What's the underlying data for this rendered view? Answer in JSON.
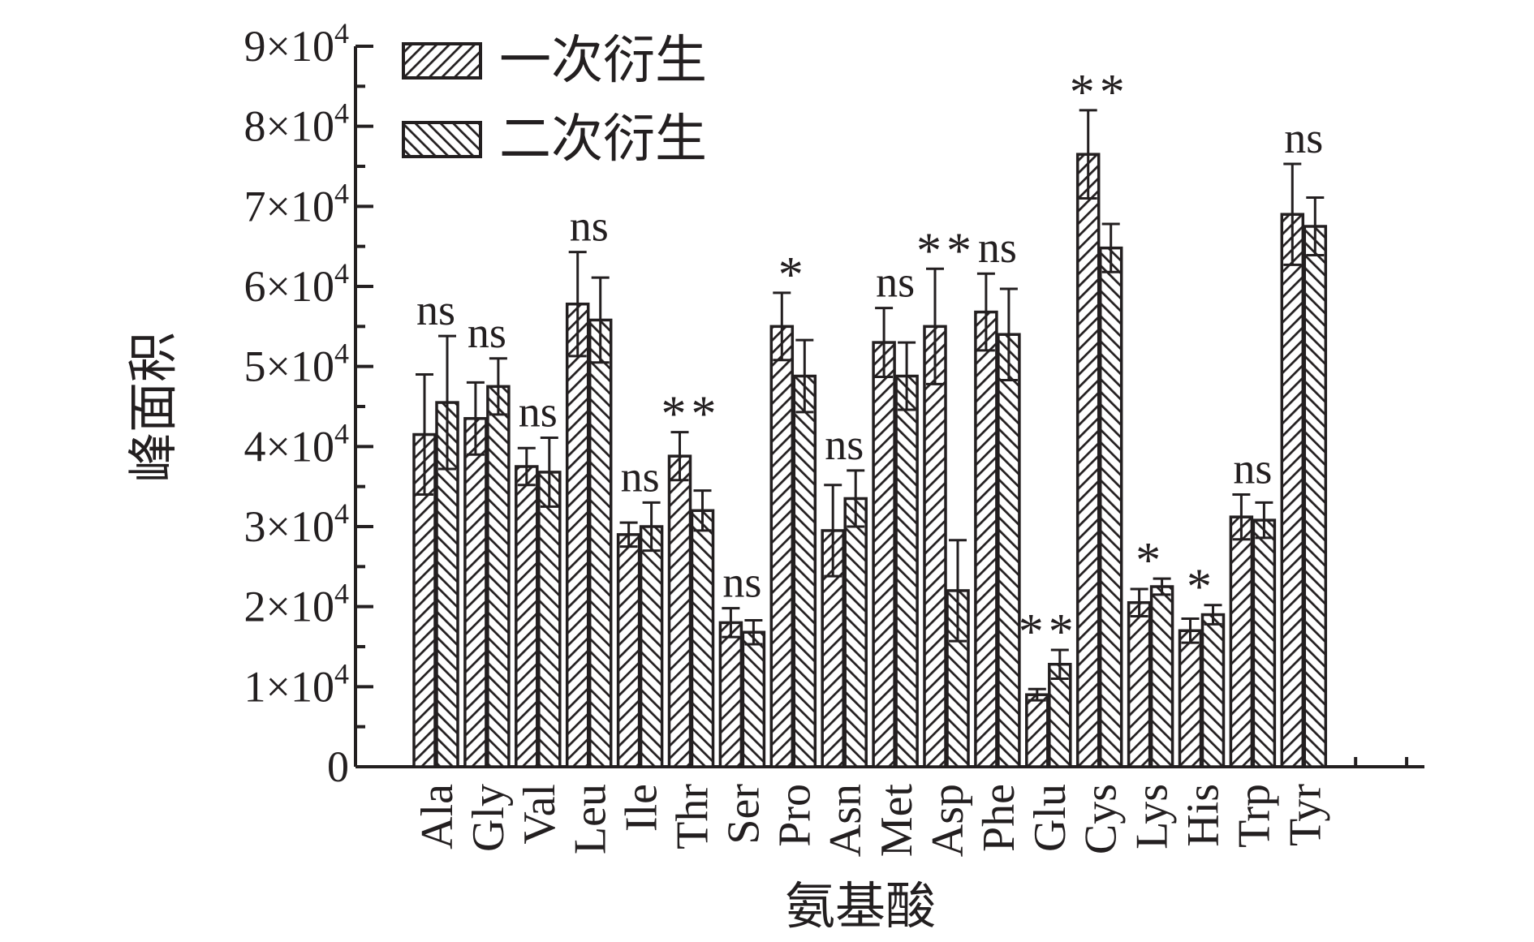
{
  "chart_data": {
    "type": "bar",
    "xlabel": "氨基酸",
    "ylabel": "峰面积",
    "ylim": [
      0,
      90000
    ],
    "yticks": [
      {
        "value": 0,
        "mantissa": "0",
        "exponent": ""
      },
      {
        "value": 10000,
        "mantissa": "1×10",
        "exponent": "4"
      },
      {
        "value": 20000,
        "mantissa": "2×10",
        "exponent": "4"
      },
      {
        "value": 30000,
        "mantissa": "3×10",
        "exponent": "4"
      },
      {
        "value": 40000,
        "mantissa": "4×10",
        "exponent": "4"
      },
      {
        "value": 50000,
        "mantissa": "5×10",
        "exponent": "4"
      },
      {
        "value": 60000,
        "mantissa": "6×10",
        "exponent": "4"
      },
      {
        "value": 70000,
        "mantissa": "7×10",
        "exponent": "4"
      },
      {
        "value": 80000,
        "mantissa": "8×10",
        "exponent": "4"
      },
      {
        "value": 90000,
        "mantissa": "9×10",
        "exponent": "4"
      }
    ],
    "categories": [
      "Ala",
      "Gly",
      "Val",
      "Leu",
      "Ile",
      "Thr",
      "Ser",
      "Pro",
      "Asn",
      "Met",
      "Asp",
      "Phe",
      "Glu",
      "Cys",
      "Lys",
      "His",
      "Trp",
      "Tyr"
    ],
    "series": [
      {
        "name": "一次衍生",
        "pattern": "forward-hatch",
        "values": [
          41500,
          43500,
          37500,
          57800,
          29000,
          38800,
          18000,
          55000,
          29500,
          53000,
          55000,
          56800,
          9000,
          76500,
          20500,
          17000,
          31200,
          69000
        ],
        "errors": [
          7500,
          4500,
          2300,
          6500,
          1500,
          3000,
          1800,
          4200,
          5700,
          4300,
          7200,
          4800,
          700,
          5500,
          1700,
          1500,
          2800,
          6300
        ]
      },
      {
        "name": "二次衍生",
        "pattern": "back-hatch",
        "values": [
          45500,
          47500,
          36800,
          55800,
          30000,
          32000,
          16800,
          48800,
          33500,
          48800,
          22000,
          54000,
          12800,
          64800,
          22500,
          19000,
          30800,
          67500
        ],
        "errors": [
          8300,
          3500,
          4300,
          5300,
          3000,
          2500,
          1500,
          4500,
          3500,
          4200,
          6300,
          5700,
          1800,
          3000,
          1000,
          1200,
          2200,
          3600
        ]
      }
    ],
    "significance": [
      "ns",
      "ns",
      "ns",
      "ns",
      "ns",
      "**",
      "ns",
      "*",
      "ns",
      "ns",
      "**",
      "ns",
      "**",
      "**",
      "*",
      "*",
      "ns",
      "ns"
    ],
    "legend": {
      "placement": "top-left"
    },
    "grid": false
  }
}
